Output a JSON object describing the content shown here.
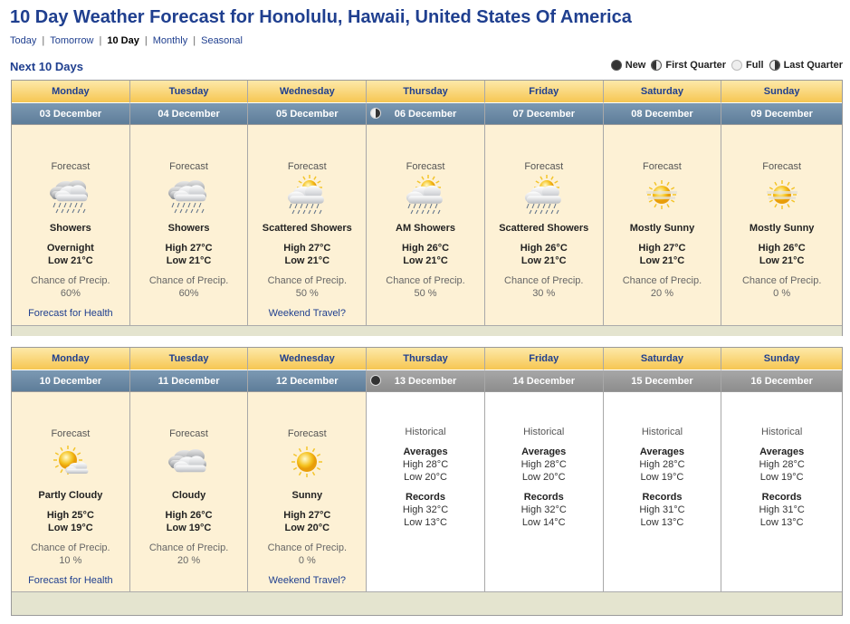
{
  "title": "10 Day Weather Forecast for Honolulu, Hawaii, United States Of America",
  "nav": [
    "Today",
    "Tomorrow",
    "10 Day",
    "Monthly",
    "Seasonal"
  ],
  "subtitle": "Next 10 Days",
  "legend": [
    "New",
    "First Quarter",
    "Full",
    "Last Quarter"
  ],
  "week1": [
    {
      "day": "Monday",
      "date": "03 December",
      "label": "Forecast",
      "icon": "showers-icon",
      "cond": "Showers",
      "t1": "Overnight",
      "t2": "Low 21°C",
      "cp": "Chance of Precip.",
      "cpv": "60%",
      "link": "Forecast for Health"
    },
    {
      "day": "Tuesday",
      "date": "04 December",
      "label": "Forecast",
      "icon": "showers-icon",
      "cond": "Showers",
      "t1": "High 27°C",
      "t2": "Low 21°C",
      "cp": "Chance of Precip.",
      "cpv": "60%",
      "link": ""
    },
    {
      "day": "Wednesday",
      "date": "05 December",
      "label": "Forecast",
      "icon": "scattered-showers-icon",
      "cond": "Scattered Showers",
      "t1": "High 27°C",
      "t2": "Low 21°C",
      "cp": "Chance of Precip.",
      "cpv": "50 %",
      "link": "Weekend Travel?"
    },
    {
      "day": "Thursday",
      "date": "06 December",
      "moon": "lq",
      "label": "Forecast",
      "icon": "scattered-showers-icon",
      "cond": "AM Showers",
      "t1": "High 26°C",
      "t2": "Low 21°C",
      "cp": "Chance of Precip.",
      "cpv": "50 %",
      "link": ""
    },
    {
      "day": "Friday",
      "date": "07 December",
      "label": "Forecast",
      "icon": "scattered-showers-icon",
      "cond": "Scattered Showers",
      "t1": "High 26°C",
      "t2": "Low 21°C",
      "cp": "Chance of Precip.",
      "cpv": "30 %",
      "link": ""
    },
    {
      "day": "Saturday",
      "date": "08 December",
      "label": "Forecast",
      "icon": "mostly-sunny-icon",
      "cond": "Mostly Sunny",
      "t1": "High 27°C",
      "t2": "Low 21°C",
      "cp": "Chance of Precip.",
      "cpv": "20 %",
      "link": ""
    },
    {
      "day": "Sunday",
      "date": "09 December",
      "label": "Forecast",
      "icon": "mostly-sunny-icon",
      "cond": "Mostly Sunny",
      "t1": "High 26°C",
      "t2": "Low 21°C",
      "cp": "Chance of Precip.",
      "cpv": "0 %",
      "link": ""
    }
  ],
  "week2": [
    {
      "day": "Monday",
      "date": "10 December",
      "label": "Forecast",
      "icon": "partly-cloudy-icon",
      "cond": "Partly Cloudy",
      "t1": "High 25°C",
      "t2": "Low 19°C",
      "cp": "Chance of Precip.",
      "cpv": "10 %",
      "link": "Forecast for Health"
    },
    {
      "day": "Tuesday",
      "date": "11 December",
      "label": "Forecast",
      "icon": "cloudy-icon",
      "cond": "Cloudy",
      "t1": "High 26°C",
      "t2": "Low 19°C",
      "cp": "Chance of Precip.",
      "cpv": "20 %",
      "link": ""
    },
    {
      "day": "Wednesday",
      "date": "12 December",
      "label": "Forecast",
      "icon": "sunny-icon",
      "cond": "Sunny",
      "t1": "High 27°C",
      "t2": "Low 20°C",
      "cp": "Chance of Precip.",
      "cpv": "0 %",
      "link": "Weekend Travel?"
    }
  ],
  "hist": [
    {
      "day": "Thursday",
      "date": "13 December",
      "moon": "new",
      "label": "Historical",
      "avg": "Averages",
      "ah": "High 28°C",
      "al": "Low 20°C",
      "rec": "Records",
      "rh": "High 32°C",
      "rl": "Low 13°C"
    },
    {
      "day": "Friday",
      "date": "14 December",
      "label": "Historical",
      "avg": "Averages",
      "ah": "High 28°C",
      "al": "Low 20°C",
      "rec": "Records",
      "rh": "High 32°C",
      "rl": "Low 14°C"
    },
    {
      "day": "Saturday",
      "date": "15 December",
      "label": "Historical",
      "avg": "Averages",
      "ah": "High 28°C",
      "al": "Low 19°C",
      "rec": "Records",
      "rh": "High 31°C",
      "rl": "Low 13°C"
    },
    {
      "day": "Sunday",
      "date": "16 December",
      "label": "Historical",
      "avg": "Averages",
      "ah": "High 28°C",
      "al": "Low 19°C",
      "rec": "Records",
      "rh": "High 31°C",
      "rl": "Low 13°C"
    }
  ]
}
